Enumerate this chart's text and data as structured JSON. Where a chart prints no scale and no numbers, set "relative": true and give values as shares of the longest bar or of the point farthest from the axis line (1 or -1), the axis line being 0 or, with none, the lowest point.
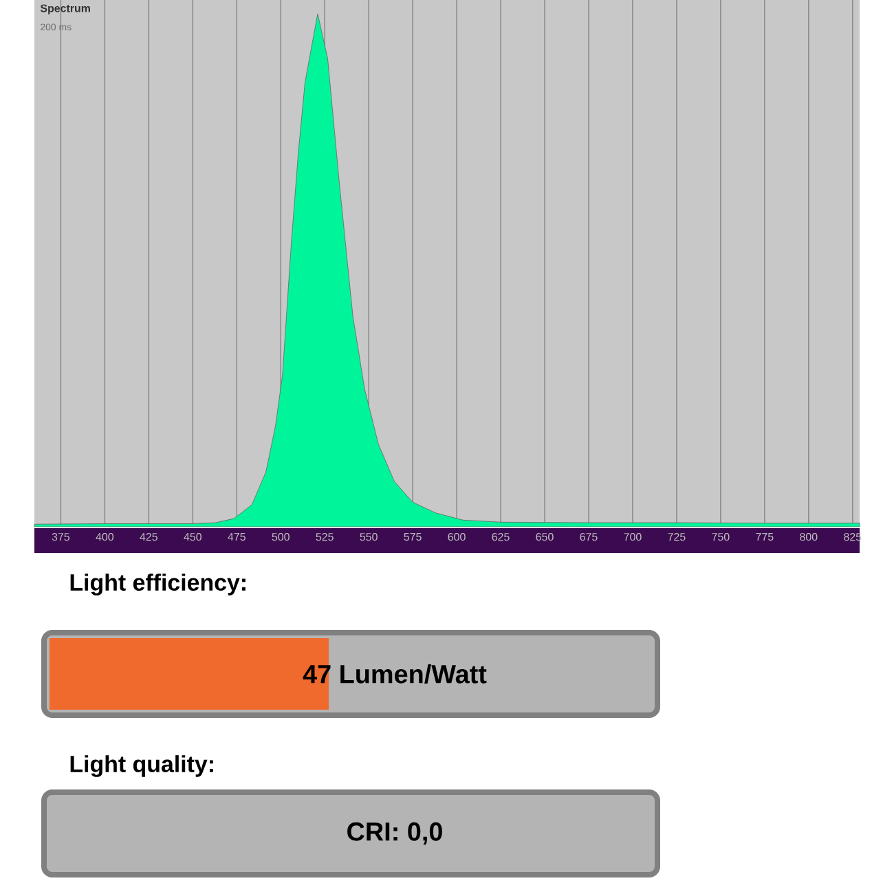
{
  "chart_data": {
    "type": "area",
    "title": "Spectrum",
    "subtitle": "200 ms",
    "relative": true,
    "x": [
      360,
      400,
      450,
      463,
      473.4,
      483.6,
      491.6,
      497,
      501,
      506,
      510,
      513.8,
      521,
      526.7,
      533.3,
      541,
      547.7,
      555.5,
      564.6,
      575,
      588,
      603.7,
      625,
      675,
      725,
      775,
      829
    ],
    "series": [
      {
        "color": "#00f59a",
        "values": [
          0.005,
          0.006,
          0.006,
          0.008,
          0.016,
          0.043,
          0.107,
          0.196,
          0.295,
          0.552,
          0.729,
          0.866,
          1,
          0.912,
          0.67,
          0.41,
          0.268,
          0.161,
          0.088,
          0.048,
          0.027,
          0.013,
          0.009,
          0.008,
          0.008,
          0.007,
          0.007
        ]
      }
    ],
    "xlim": [
      360,
      829
    ],
    "xticks": [
      375,
      400,
      425,
      450,
      475,
      500,
      525,
      550,
      575,
      600,
      625,
      650,
      675,
      700,
      725,
      750,
      775,
      800,
      825
    ],
    "grid": "x",
    "annotations": [
      "Light efficiency:",
      "47 Lumen/Watt",
      "Light quality:",
      "CRI: 0,0"
    ]
  }
}
